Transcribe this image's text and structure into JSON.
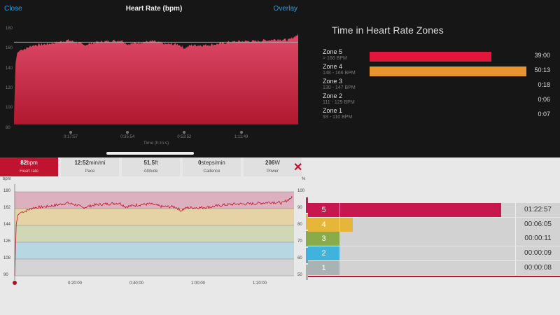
{
  "top_chart": {
    "close_label": "Close",
    "title": "Heart Rate (bpm)",
    "overlay_label": "Overlay",
    "y_ticks": [
      "180",
      "160",
      "140",
      "120",
      "100",
      "80"
    ],
    "x_ticks": [
      "0:17:57",
      "0:35:54",
      "0:53:52",
      "1:11:49"
    ],
    "x_label": "Time (h:m:s)",
    "reference_line_bpm": 166,
    "fill_color": "#d83a5a"
  },
  "zones_panel": {
    "title": "Time in Heart Rate Zones",
    "zones": [
      {
        "name": "Zone 5",
        "range": "> 166 BPM",
        "time": "39:00",
        "minutes": 39.0,
        "color": "#e0163d"
      },
      {
        "name": "Zone 4",
        "range": "148 - 166 BPM",
        "time": "50:13",
        "minutes": 50.22,
        "color": "#e8952f"
      },
      {
        "name": "Zone 3",
        "range": "130 - 147 BPM",
        "time": "0:18",
        "minutes": 0.3,
        "color": "#888"
      },
      {
        "name": "Zone 2",
        "range": "111 - 129 BPM",
        "time": "0:06",
        "minutes": 0.1,
        "color": "#888"
      },
      {
        "name": "Zone 1",
        "range": "93 - 110 BPM",
        "time": "0:07",
        "minutes": 0.12,
        "color": "#888"
      }
    ]
  },
  "metrics_tabs": [
    {
      "value": "82",
      "unit": "bpm",
      "label": "Heart rate",
      "active": true
    },
    {
      "value": "12:52",
      "unit": "min/mi",
      "label": "Pace"
    },
    {
      "value": "51.5",
      "unit": "ft",
      "label": "Altitude"
    },
    {
      "value": "0",
      "unit": "steps/min",
      "label": "Cadence"
    },
    {
      "value": "206",
      "unit": "W",
      "label": "Power"
    }
  ],
  "bottom_chart": {
    "y_unit": "bpm",
    "y2_unit": "%",
    "y_ticks": [
      "180",
      "162",
      "144",
      "126",
      "108",
      "90"
    ],
    "y2_ticks": [
      "100",
      "90",
      "80",
      "70",
      "60",
      "50"
    ],
    "x_ticks": [
      "0:20:00",
      "0:40:00",
      "1:00:00",
      "1:20:00"
    ],
    "zone_colors": [
      "#dcb0bf",
      "#e5d3a6",
      "#d0d7b4",
      "#b7d7e2",
      "#d4d4d4"
    ],
    "line_color": "#c0132f"
  },
  "zone_table": [
    {
      "zone": "5",
      "time": "01:22:57",
      "fraction": 0.92,
      "color": "#c8174f"
    },
    {
      "zone": "4",
      "time": "00:06:05",
      "fraction": 0.07,
      "color": "#e6b63a"
    },
    {
      "zone": "3",
      "time": "00:00:11",
      "fraction": 0.0,
      "color": "#8aab49"
    },
    {
      "zone": "2",
      "time": "00:00:09",
      "fraction": 0.0,
      "color": "#3fb3dc"
    },
    {
      "zone": "1",
      "time": "00:00:08",
      "fraction": 0.0,
      "color": "#aab3b3"
    }
  ],
  "chart_data": {
    "type": "area",
    "xlabel": "Time (h:m:s)",
    "ylabel": "bpm",
    "x_unit": "minutes",
    "xlim": [
      0,
      90.5
    ],
    "ylim": [
      80,
      180
    ],
    "x": [
      0,
      0.5,
      1,
      2,
      4,
      6,
      10,
      14,
      17,
      20,
      22,
      26,
      30,
      34,
      36,
      40,
      44,
      48,
      52,
      54,
      56,
      60,
      64,
      68,
      72,
      76,
      80,
      84,
      87,
      89,
      90.5
    ],
    "y": [
      90,
      145,
      155,
      158,
      160,
      163,
      164,
      166,
      168,
      166,
      163,
      166,
      167,
      168,
      164,
      166,
      167,
      164,
      164,
      160,
      163,
      163,
      164,
      166,
      167,
      167,
      168,
      169,
      168,
      172,
      175
    ]
  }
}
